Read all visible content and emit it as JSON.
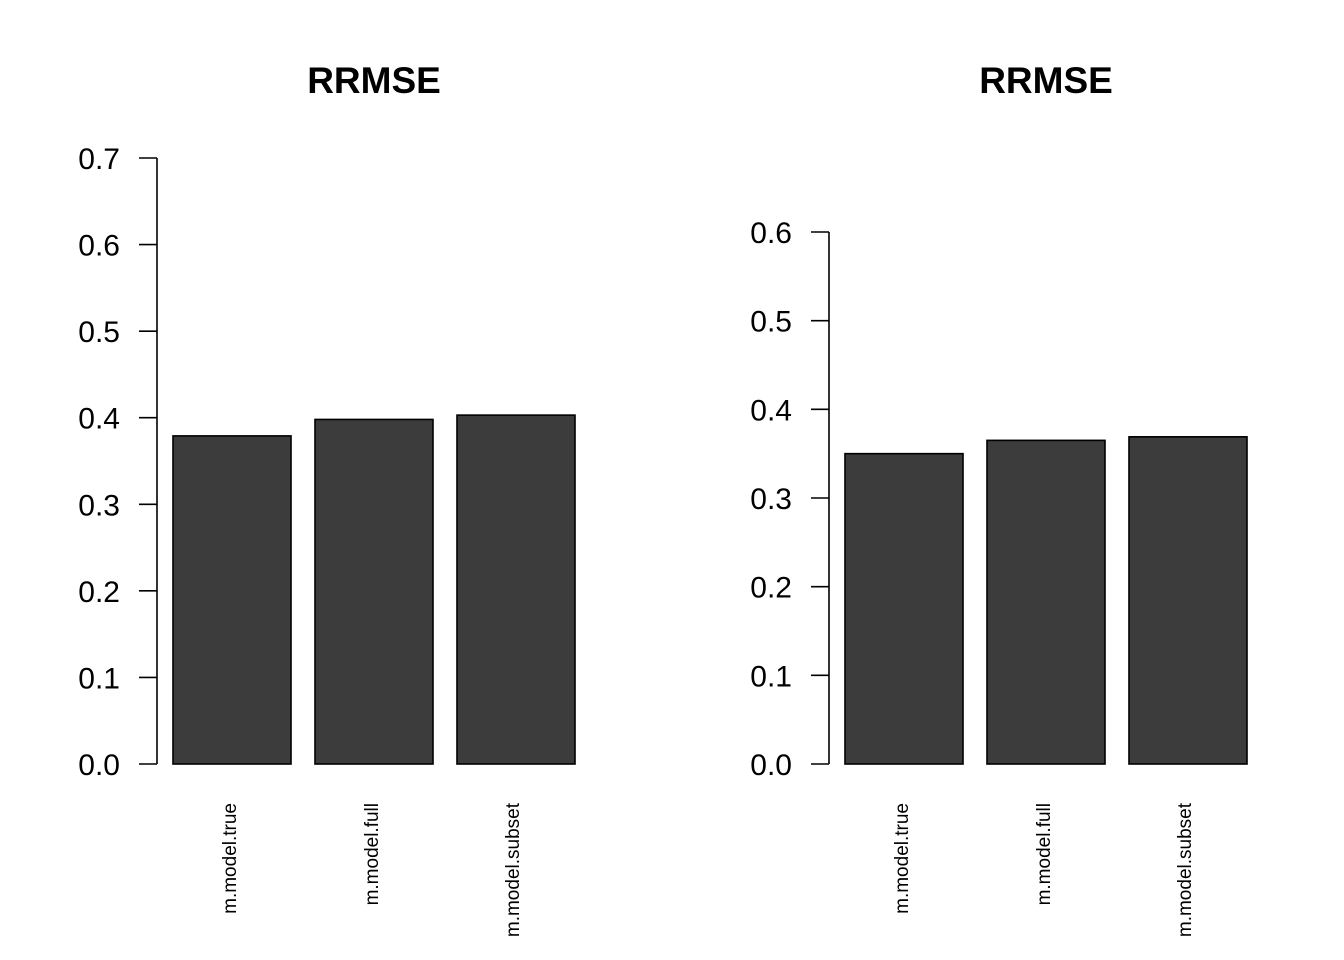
{
  "chart_data": [
    {
      "type": "bar",
      "title": "RRMSE",
      "xlabel": "",
      "ylabel": "",
      "categories": [
        "m.model.true",
        "m.model.full",
        "m.model.subset"
      ],
      "values": [
        0.379,
        0.398,
        0.403
      ],
      "ylim": [
        0,
        0.7
      ],
      "yticks": [
        0.0,
        0.1,
        0.2,
        0.3,
        0.4,
        0.5,
        0.6,
        0.7
      ],
      "ytick_labels": [
        "0.0",
        "0.1",
        "0.2",
        "0.3",
        "0.4",
        "0.5",
        "0.6",
        "0.7"
      ],
      "bar_color": "#3c3c3c",
      "grid": false
    },
    {
      "type": "bar",
      "title": "RRMSE",
      "xlabel": "",
      "ylabel": "",
      "categories": [
        "m.model.true",
        "m.model.full",
        "m.model.subset"
      ],
      "values": [
        0.35,
        0.365,
        0.369
      ],
      "ylim": [
        0,
        0.6
      ],
      "yticks": [
        0.0,
        0.1,
        0.2,
        0.3,
        0.4,
        0.5,
        0.6
      ],
      "ytick_labels": [
        "0.0",
        "0.1",
        "0.2",
        "0.3",
        "0.4",
        "0.5",
        "0.6"
      ],
      "bar_color": "#3c3c3c",
      "grid": false
    }
  ]
}
